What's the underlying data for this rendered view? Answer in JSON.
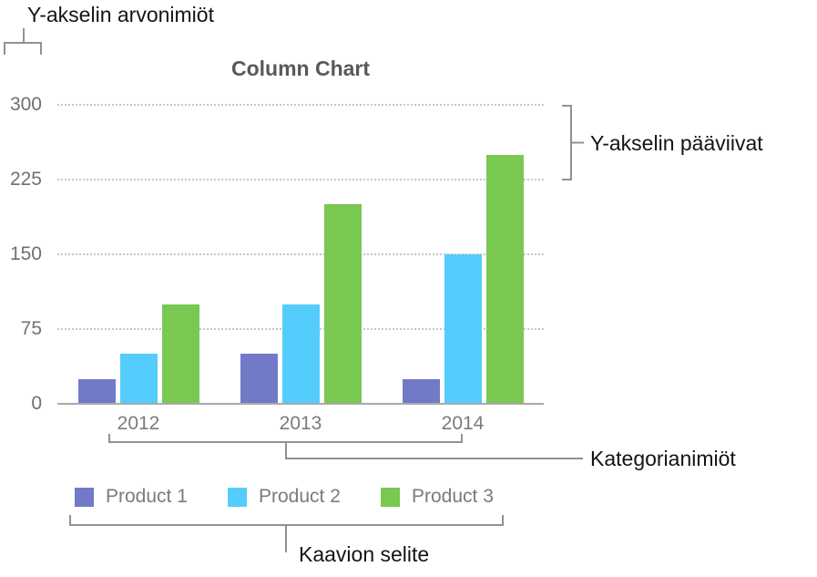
{
  "annotations": {
    "y_axis_values_label": "Y-akselin arvonimiöt",
    "y_axis_gridlines_label": "Y-akselin pääviivat",
    "category_labels_label": "Kategorianimiöt",
    "legend_label": "Kaavion selite"
  },
  "chart_data": {
    "type": "bar",
    "title": "Column Chart",
    "categories": [
      "2012",
      "2013",
      "2014"
    ],
    "series": [
      {
        "name": "Product 1",
        "color": "#727AC8",
        "values": [
          25,
          50,
          25
        ]
      },
      {
        "name": "Product 2",
        "color": "#54CDFC",
        "values": [
          50,
          100,
          150
        ]
      },
      {
        "name": "Product 3",
        "color": "#79C851",
        "values": [
          100,
          200,
          250
        ]
      }
    ],
    "y_ticks": [
      0,
      75,
      150,
      225,
      300
    ],
    "ylim": [
      0,
      300
    ],
    "xlabel": "",
    "ylabel": "",
    "grid": "horizontal-dotted",
    "legend_position": "bottom"
  },
  "colors": {
    "title_text": "#58585b",
    "axis_text": "#6f7073",
    "category_text": "#7a7b7e",
    "annotation_text": "#141414",
    "bracket_stroke": "#919195",
    "gridline": "#c6c6c9",
    "baseline": "#a9a9ac"
  }
}
